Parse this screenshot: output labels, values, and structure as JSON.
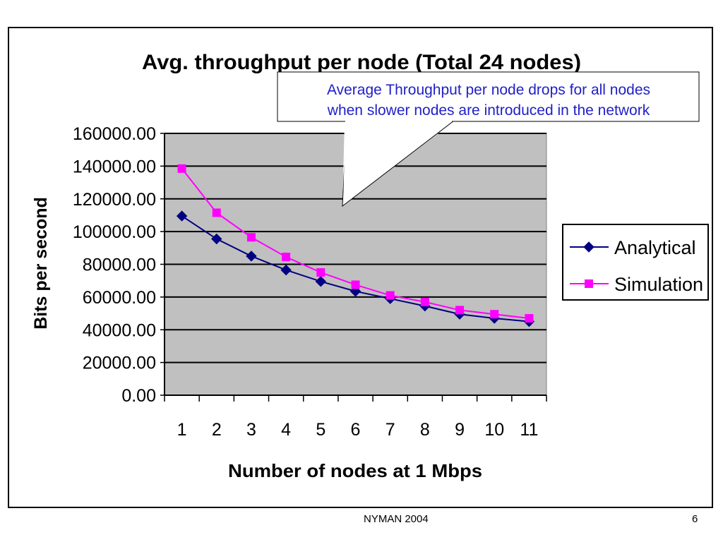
{
  "chart_data": {
    "type": "line",
    "title": "Avg. throughput per node (Total 24 nodes)",
    "xlabel": "Number of nodes at 1 Mbps",
    "ylabel": "Bits per second",
    "categories": [
      "1",
      "2",
      "3",
      "4",
      "5",
      "6",
      "7",
      "8",
      "9",
      "10",
      "11"
    ],
    "yticks": [
      "0.00",
      "20000.00",
      "40000.00",
      "60000.00",
      "80000.00",
      "100000.00",
      "120000.00",
      "140000.00",
      "160000.00"
    ],
    "ylim": [
      0,
      160000
    ],
    "grid": true,
    "legend": "right",
    "plot_background": "#c0c0c0",
    "series": [
      {
        "name": "Analytical",
        "color": "#000080",
        "marker": "diamond",
        "values": [
          109500,
          95500,
          85000,
          76500,
          69500,
          63500,
          59000,
          54500,
          49500,
          47000,
          45000
        ]
      },
      {
        "name": "Simulation",
        "color": "#ff00ff",
        "marker": "square",
        "values": [
          138500,
          111500,
          96500,
          84500,
          75000,
          67500,
          61000,
          57000,
          52000,
          49500,
          47000
        ]
      }
    ],
    "annotation": {
      "lines": [
        "Average Throughput per node drops for all nodes",
        "when slower nodes are introduced in the network"
      ],
      "color": "#1f1fc8"
    }
  },
  "footer": {
    "left": "NYMAN 2004",
    "right": "6"
  }
}
